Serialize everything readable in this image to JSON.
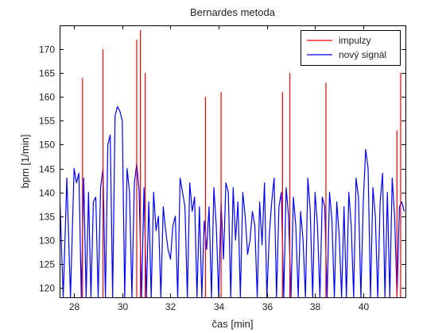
{
  "chart_data": {
    "type": "line",
    "title": "Bernardes metoda",
    "xlabel": "čas [min]",
    "ylabel": "bpm [1/min]",
    "xlim": [
      27.4,
      41.75
    ],
    "ylim": [
      118,
      175
    ],
    "xticks": [
      28,
      30,
      32,
      34,
      36,
      38,
      40
    ],
    "yticks": [
      120,
      125,
      130,
      135,
      140,
      145,
      150,
      155,
      160,
      165,
      170
    ],
    "grid": false,
    "legend_position": "top-right",
    "series": [
      {
        "name": "impulzy",
        "color": "#ff0000",
        "style": "stems",
        "baseline": 118,
        "x": [
          28.35,
          29.2,
          30.6,
          30.75,
          30.95,
          33.45,
          34.1,
          36.65,
          36.95,
          38.45,
          41.4,
          41.55
        ],
        "y": [
          164,
          170,
          172,
          174,
          165,
          160,
          161,
          161,
          165,
          163,
          153,
          165
        ]
      },
      {
        "name": "nový signál",
        "color": "#0000ff",
        "style": "line",
        "x": [
          27.4,
          27.55,
          27.7,
          27.85,
          28.0,
          28.1,
          28.2,
          28.3,
          28.4,
          28.5,
          28.6,
          28.7,
          28.8,
          28.9,
          29.0,
          29.1,
          29.2,
          29.3,
          29.4,
          29.5,
          29.6,
          29.7,
          29.8,
          29.9,
          30.0,
          30.1,
          30.2,
          30.3,
          30.4,
          30.5,
          30.6,
          30.7,
          30.8,
          30.9,
          31.0,
          31.1,
          31.2,
          31.3,
          31.4,
          31.5,
          31.6,
          31.7,
          31.8,
          31.9,
          32.0,
          32.1,
          32.2,
          32.3,
          32.4,
          32.5,
          32.6,
          32.7,
          32.8,
          32.9,
          33.0,
          33.1,
          33.2,
          33.3,
          33.4,
          33.5,
          33.6,
          33.7,
          33.8,
          33.9,
          34.0,
          34.1,
          34.2,
          34.3,
          34.4,
          34.5,
          34.6,
          34.7,
          34.8,
          34.9,
          35.0,
          35.1,
          35.2,
          35.3,
          35.4,
          35.5,
          35.6,
          35.7,
          35.8,
          35.9,
          36.0,
          36.1,
          36.2,
          36.3,
          36.4,
          36.5,
          36.6,
          36.7,
          36.8,
          36.9,
          37.0,
          37.1,
          37.2,
          37.3,
          37.4,
          37.5,
          37.6,
          37.7,
          37.8,
          37.9,
          38.0,
          38.1,
          38.2,
          38.3,
          38.4,
          38.5,
          38.6,
          38.7,
          38.8,
          38.9,
          39.0,
          39.1,
          39.2,
          39.3,
          39.4,
          39.5,
          39.6,
          39.7,
          39.8,
          39.9,
          40.0,
          40.1,
          40.2,
          40.3,
          40.4,
          40.5,
          40.6,
          40.7,
          40.8,
          40.9,
          41.0,
          41.1,
          41.2,
          41.3,
          41.4,
          41.5,
          41.6,
          41.7
        ],
        "y": [
          140,
          118,
          143,
          118,
          145,
          142,
          144,
          118,
          143,
          118,
          140,
          118,
          138,
          139,
          118,
          141,
          145,
          118,
          150,
          152,
          118,
          156,
          158,
          157,
          155,
          118,
          145,
          140,
          118,
          142,
          146,
          140,
          118,
          141,
          118,
          138,
          118,
          140,
          132,
          135,
          118,
          137,
          132,
          128,
          126,
          133,
          135,
          118,
          143,
          140,
          137,
          118,
          142,
          136,
          139,
          118,
          137,
          118,
          134,
          128,
          137,
          118,
          141,
          133,
          118,
          138,
          126,
          142,
          140,
          118,
          141,
          130,
          138,
          118,
          140,
          135,
          127,
          130,
          136,
          133,
          118,
          138,
          129,
          142,
          118,
          131,
          138,
          143,
          118,
          137,
          140,
          118,
          141,
          135,
          118,
          139,
          133,
          118,
          136,
          130,
          118,
          143,
          136,
          118,
          140,
          133,
          118,
          139,
          137,
          118,
          140,
          134,
          118,
          138,
          131,
          118,
          137,
          118,
          140,
          133,
          118,
          143,
          139,
          118,
          138,
          149,
          145,
          118,
          141,
          135,
          118,
          138,
          144,
          118,
          140,
          118,
          143,
          135,
          118,
          137,
          138,
          136
        ]
      }
    ]
  }
}
